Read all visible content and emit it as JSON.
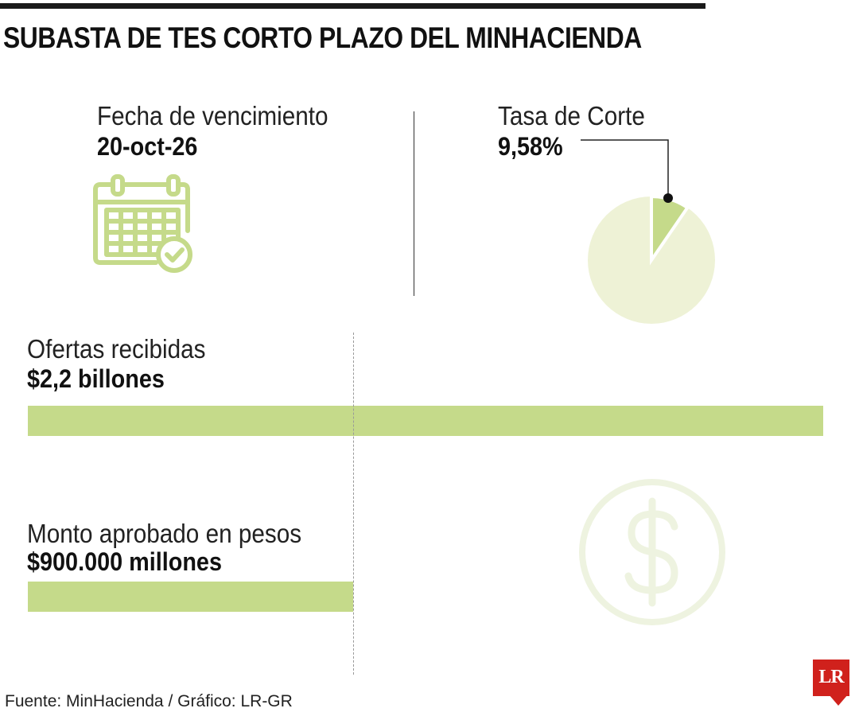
{
  "header": {
    "title": "SUBASTA DE TES CORTO PLAZO DEL MINHACIENDA"
  },
  "maturity": {
    "label": "Fecha de vencimiento",
    "value": "20-oct-26",
    "icon": "calendar-check-icon"
  },
  "cutoff_rate": {
    "label": "Tasa de Corte",
    "value": "9,58%"
  },
  "offers": {
    "label": "Ofertas recibidas",
    "value": "$2,2 billones"
  },
  "approved": {
    "label": "Monto aprobado en pesos",
    "value": "$900.000 millones",
    "icon": "dollar-sign-icon"
  },
  "footer": {
    "source": "Fuente: MinHacienda / Gráfico: LR-GR",
    "logo_text": "LR"
  },
  "colors": {
    "accent": "#c5da8a",
    "pie_background": "#eef2d6",
    "icon_green": "#c5da8a",
    "dollar_faint": "#eef3e0",
    "logo_red": "#d0211c"
  },
  "chart_data": [
    {
      "type": "pie",
      "values": [
        9.58,
        90.42
      ],
      "unit": "%"
    },
    {
      "type": "bar",
      "categories": [
        "Ofertas recibidas",
        "Monto aprobado en pesos"
      ],
      "values": [
        2.2,
        0.9
      ],
      "unit": "billones de pesos"
    }
  ]
}
